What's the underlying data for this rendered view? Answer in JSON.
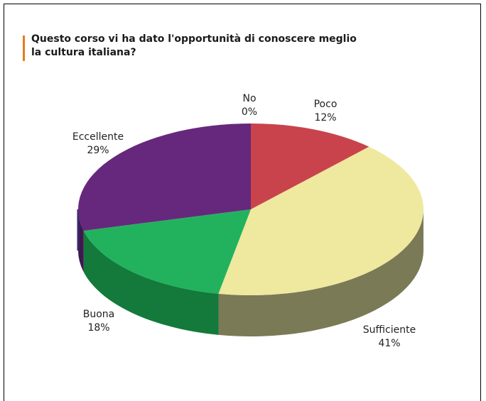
{
  "chart_data": {
    "type": "pie",
    "title": "Questo corso vi ha dato l'opportunità di conoscere meglio la cultura italiana?",
    "slices": [
      {
        "label": "No",
        "value": 0,
        "value_label": "0%",
        "color": "#d4a0a6"
      },
      {
        "label": "Poco",
        "value": 12,
        "value_label": "12%",
        "color": "#c9434c",
        "side": "#8e2d33"
      },
      {
        "label": "Sufficiente",
        "value": 41,
        "value_label": "41%",
        "color": "#efe89f",
        "side": "#7b7a57"
      },
      {
        "label": "Buona",
        "value": 18,
        "value_label": "18%",
        "color": "#22b25e",
        "side": "#137a3b"
      },
      {
        "label": "Eccellente",
        "value": 29,
        "value_label": "29%",
        "color": "#66287c",
        "side": "#3f1750"
      }
    ],
    "legend": "none",
    "style": "3d-pie"
  }
}
